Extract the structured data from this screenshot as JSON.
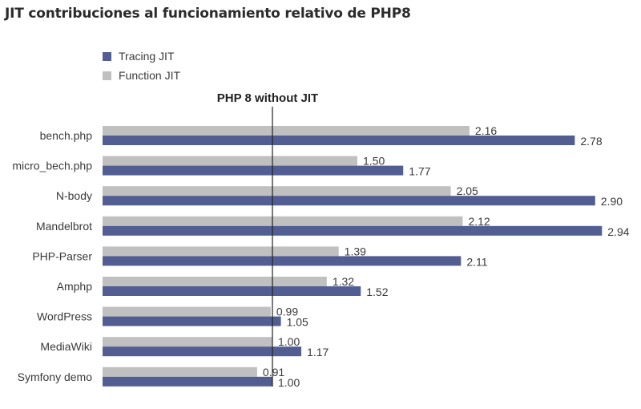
{
  "chart_data": {
    "type": "bar",
    "orientation": "horizontal",
    "title": "JIT contribuciones al funcionamiento relativo de PHP8",
    "categories": [
      "bench.php",
      "micro_bech.php",
      "N-body",
      "Mandelbrot",
      "PHP-Parser",
      "Amphp",
      "WordPress",
      "MediaWiki",
      "Symfony demo"
    ],
    "series": [
      {
        "name": "Function JIT",
        "color": "#c0c0c0",
        "values": [
          2.16,
          1.5,
          2.05,
          2.12,
          1.39,
          1.32,
          0.99,
          1.0,
          0.91
        ]
      },
      {
        "name": "Tracing JIT",
        "color": "#525e92",
        "values": [
          2.78,
          1.77,
          2.9,
          2.94,
          2.11,
          1.52,
          1.05,
          1.17,
          1.0
        ]
      }
    ],
    "legend": {
      "placement": "top-left",
      "order": [
        "Tracing JIT",
        "Function JIT"
      ]
    },
    "reference_line": {
      "value": 1.0,
      "label": "PHP 8 without JIT"
    },
    "xlim": [
      0,
      3.0
    ],
    "grid": false
  }
}
